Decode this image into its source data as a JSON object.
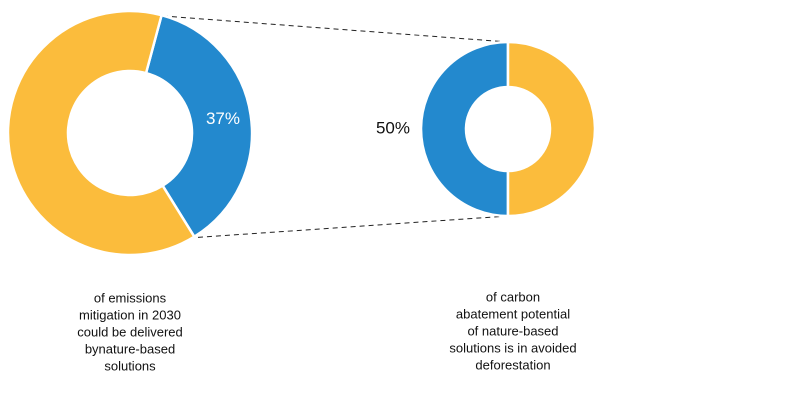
{
  "chart_data": [
    {
      "type": "pie",
      "donut": true,
      "values": [
        37,
        63
      ],
      "value_labels": [
        "37%",
        null
      ],
      "colors": [
        "#2389ce",
        "#fbbc3c"
      ],
      "caption": [
        "of emissions",
        "mitigation in 2030",
        "could be delivered",
        "bynature-based",
        "solutions"
      ]
    },
    {
      "type": "pie",
      "donut": true,
      "values": [
        50,
        50
      ],
      "value_labels": [
        "50%",
        null
      ],
      "colors": [
        "#2389ce",
        "#fbbc3c"
      ],
      "caption": [
        "of carbon",
        "abatement potential",
        "of nature-based",
        "solutions is in avoided",
        "deforestation"
      ]
    }
  ]
}
